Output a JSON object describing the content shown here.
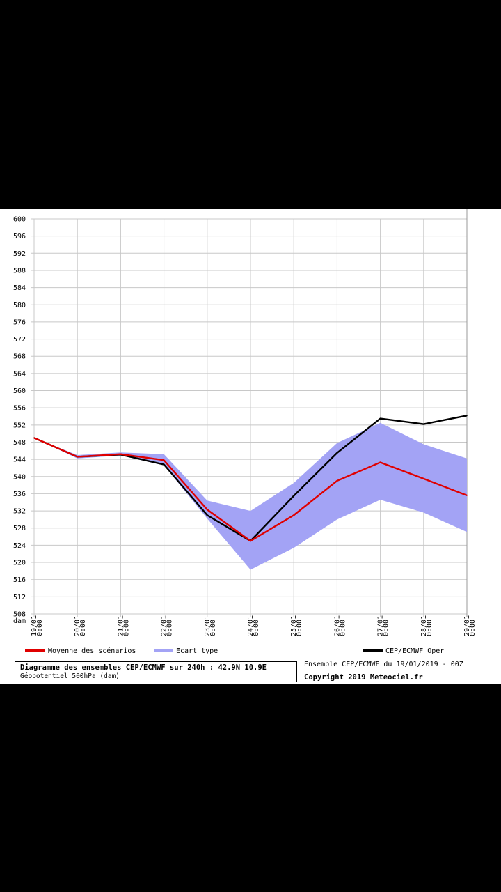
{
  "chart_data": {
    "type": "line",
    "title": "Diagramme des ensembles CEP/ECMWF sur 240h : 42.9N 10.9E",
    "subtitle": "Géopotentiel 500hPa (dam)",
    "ylabel": "dam",
    "xlabel": "",
    "ylim": [
      508,
      600
    ],
    "yticks": [
      508,
      512,
      516,
      520,
      524,
      528,
      532,
      536,
      540,
      544,
      548,
      552,
      556,
      560,
      564,
      568,
      572,
      576,
      580,
      584,
      588,
      592,
      596,
      600
    ],
    "categories": [
      "19/01",
      "20/01",
      "21/01",
      "22/01",
      "23/01",
      "24/01",
      "25/01",
      "26/01",
      "27/01",
      "28/01",
      "29/01"
    ],
    "category_time": "0:00",
    "grid": true,
    "series": [
      {
        "name": "Moyenne des scénarios",
        "color": "#e00000",
        "values": [
          549,
          544.6,
          545.2,
          543.8,
          532.3,
          525,
          531,
          539,
          543.3,
          539.5,
          535.6
        ]
      },
      {
        "name": "CEP/ECMWF Oper",
        "color": "#000000",
        "values": [
          549,
          544.6,
          545.1,
          542.8,
          531,
          525,
          535.5,
          545.5,
          553.5,
          552.2,
          554.2
        ]
      }
    ],
    "band": {
      "name": "Ecart type",
      "color": "#a3a3f5",
      "upper": [
        549,
        545,
        545.6,
        545.2,
        534.4,
        532,
        538.5,
        547.8,
        552.5,
        547.5,
        544.2
      ],
      "lower": [
        549,
        544.2,
        544.9,
        542.6,
        530.2,
        518.3,
        523.4,
        530,
        534.6,
        531.6,
        527.1
      ]
    }
  },
  "footer": {
    "legend_mean": "Moyenne des scénarios",
    "legend_stddev": "Ecart type",
    "legend_oper": "CEP/ECMWF Oper",
    "title": "Diagramme des ensembles CEP/ECMWF sur 240h : 42.9N 10.9E",
    "subtitle": "Géopotentiel 500hPa (dam)",
    "run_info": "Ensemble CEP/ECMWF du 19/01/2019 - 00Z",
    "copyright": "Copyright 2019 Meteociel.fr"
  },
  "colors": {
    "mean": "#e00000",
    "oper": "#000000",
    "band": "#a3a3f5",
    "grid": "#c8c8c8"
  }
}
